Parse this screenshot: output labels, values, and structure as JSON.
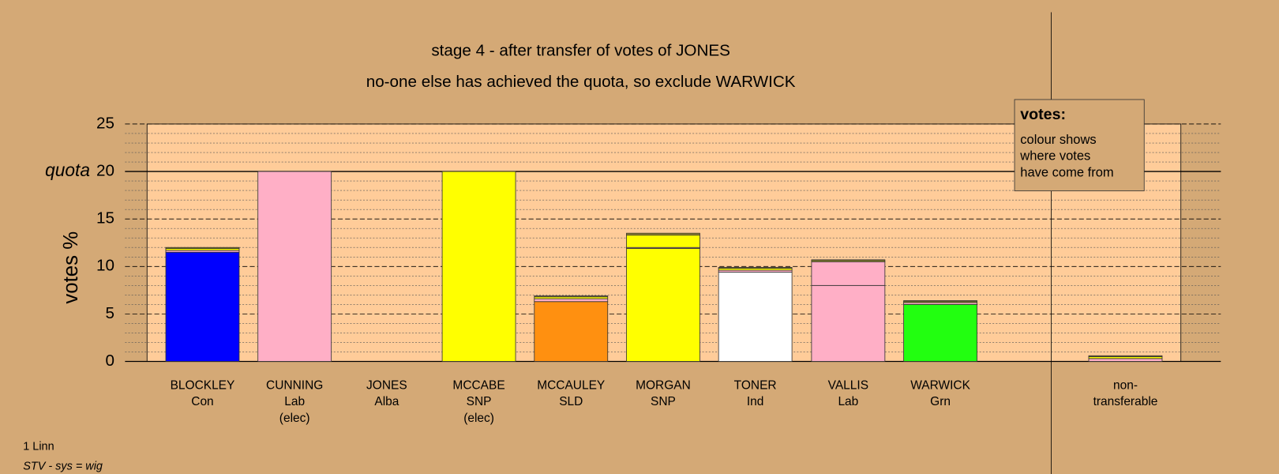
{
  "chart_data": {
    "type": "bar",
    "stacked": true,
    "title": "stage 4 - after transfer of votes of JONES",
    "subtitle": "no-one else has achieved the quota, so exclude WARWICK",
    "y_label": "votes %",
    "quota_label": "quota",
    "quota": 20,
    "ylim": [
      0,
      25
    ],
    "yticks": [
      0,
      5,
      10,
      15,
      20,
      25
    ],
    "grid": true,
    "categories": [
      [
        "BLOCKLEY",
        "Con"
      ],
      [
        "CUNNING",
        "Lab",
        "(elec)"
      ],
      [
        "JONES",
        "Alba"
      ],
      [
        "MCCABE",
        "SNP",
        "(elec)"
      ],
      [
        "MCCAULEY",
        "SLD"
      ],
      [
        "MORGAN",
        "SNP"
      ],
      [
        "TONER",
        "Ind"
      ],
      [
        "VALLIS",
        "Lab"
      ],
      [
        "WARWICK",
        "Grn"
      ],
      [
        "non-",
        "transferable"
      ]
    ],
    "series": [
      {
        "colors": [
          "#0000ff",
          "#ffafc6",
          "#9c8a2c",
          "#ffff00",
          "#ff9010",
          "#ffff00",
          "#ffffff",
          "#ffafc6",
          "#22ff10",
          "#ffafc6"
        ],
        "values": [
          11.5,
          20,
          0,
          20,
          6.3,
          11.9,
          9.4,
          8.0,
          6.0,
          0
        ]
      },
      {
        "color": "#ffafc6",
        "values": [
          0.2,
          0,
          0,
          0,
          0.3,
          0.1,
          0.2,
          2.5,
          0.2,
          0.3
        ]
      },
      {
        "color": "#ffff00",
        "values": [
          0.2,
          0,
          0,
          0,
          0.2,
          1.3,
          0.2,
          0.1,
          0.1,
          0.2
        ]
      },
      {
        "color": "#9c8a2c",
        "values": [
          0.1,
          0,
          0,
          0,
          0.1,
          0.2,
          0.1,
          0.1,
          0.1,
          0.1
        ]
      }
    ],
    "legend": {
      "title": "votes:",
      "lines": [
        "colour shows",
        "where votes",
        "have come from"
      ]
    },
    "footer": {
      "area": "1 Linn",
      "system": "STV - sys = wig"
    }
  }
}
